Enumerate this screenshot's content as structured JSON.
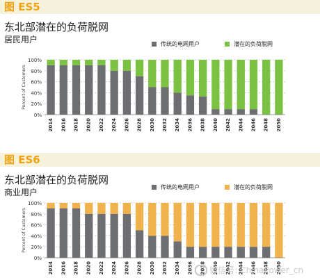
{
  "charts": [
    {
      "figure_label": "图 ES5",
      "title": "东北部潜在的负荷脱网",
      "subtitle": "居民用户",
      "legend_traditional": "传统的电网用户",
      "legend_potential": "潜在的负荷脱网",
      "ylabel": "Percent of Customers",
      "colors": {
        "traditional": "#6d6e71",
        "potential": "#7cc242"
      }
    },
    {
      "figure_label": "图 ES6",
      "title": "东北部潜在的负荷脱网",
      "subtitle": "商业用户",
      "legend_traditional": "传统的电网用户",
      "legend_potential": "潜在的负荷脱网",
      "ylabel": "Percent of Customers",
      "colors": {
        "traditional": "#6d6e71",
        "potential": "#f0b24c"
      }
    }
  ],
  "watermark": "微信号: ChinaPower_cn",
  "chart_data": [
    {
      "type": "bar",
      "stacked": true,
      "title": "东北部潜在的负荷脱网",
      "subtitle": "居民用户",
      "ylabel": "Percent of Customers",
      "ylim": [
        0,
        100
      ],
      "yticks": [
        "0%",
        "20%",
        "40%",
        "60%",
        "80%",
        "100%"
      ],
      "grid": true,
      "legend_position": "top-right",
      "categories": [
        "2014",
        "2016",
        "2018",
        "2020",
        "2022",
        "2024",
        "2026",
        "2028",
        "2030",
        "2032",
        "2034",
        "2036",
        "2038",
        "2040",
        "2042",
        "2044",
        "2046",
        "2048",
        "2050"
      ],
      "series": [
        {
          "name": "传统的电网用户",
          "values": [
            90,
            90,
            90,
            90,
            90,
            80,
            80,
            70,
            50,
            50,
            40,
            35,
            33,
            10,
            10,
            10,
            10,
            0,
            0
          ]
        },
        {
          "name": "潜在的负荷脱网",
          "values": [
            10,
            10,
            10,
            10,
            10,
            20,
            20,
            30,
            50,
            50,
            60,
            65,
            67,
            90,
            90,
            90,
            90,
            100,
            100
          ]
        }
      ]
    },
    {
      "type": "bar",
      "stacked": true,
      "title": "东北部潜在的负荷脱网",
      "subtitle": "商业用户",
      "ylabel": "Percent of Customers",
      "ylim": [
        0,
        100
      ],
      "yticks": [
        "0%",
        "20%",
        "40%",
        "60%",
        "80%",
        "100%"
      ],
      "grid": true,
      "legend_position": "top-right",
      "categories": [
        "2014",
        "2016",
        "2018",
        "2020",
        "2022",
        "2024",
        "2026",
        "2028",
        "2030",
        "2032",
        "2034",
        "2036",
        "2038",
        "2040",
        "2042",
        "2044",
        "2046",
        "2048",
        "2050"
      ],
      "series": [
        {
          "name": "传统的电网用户",
          "values": [
            90,
            90,
            90,
            80,
            80,
            80,
            80,
            50,
            40,
            40,
            30,
            20,
            20,
            20,
            20,
            20,
            20,
            20,
            0
          ]
        },
        {
          "name": "潜在的负荷脱网",
          "values": [
            10,
            10,
            10,
            20,
            20,
            20,
            20,
            50,
            60,
            60,
            70,
            80,
            80,
            80,
            80,
            80,
            80,
            80,
            100
          ]
        }
      ]
    }
  ]
}
